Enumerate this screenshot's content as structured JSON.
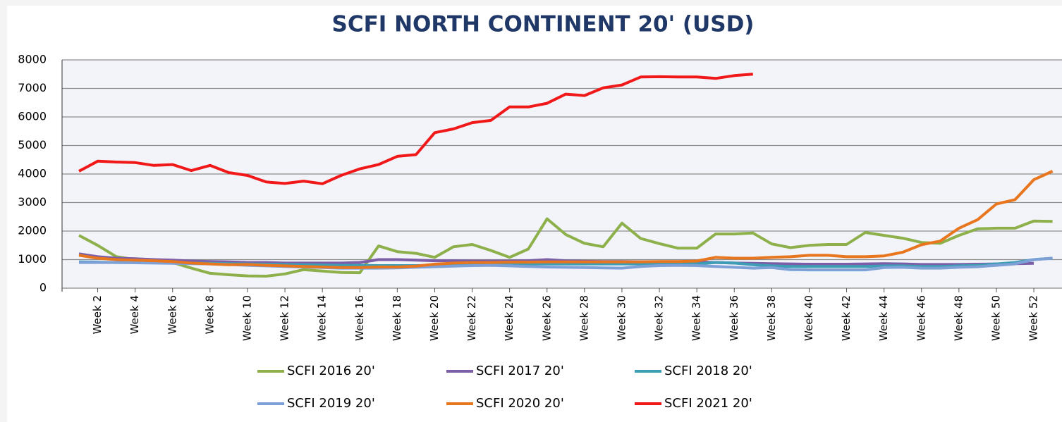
{
  "chart_data": {
    "type": "line",
    "title": "SCFI NORTH CONTINENT 20' (USD)",
    "categories": [
      null,
      "Week 2",
      null,
      "Week 4",
      null,
      "Week 6",
      null,
      "Week 8",
      null,
      "Week 10",
      null,
      "Week 12",
      null,
      "Week 14",
      null,
      "Week 16",
      null,
      "Week 18",
      null,
      "Week 20",
      null,
      "Week 22",
      null,
      "Week 24",
      null,
      "Week 26",
      null,
      "Week 28",
      null,
      "Week 30",
      null,
      "Week 32",
      null,
      "Week 34",
      null,
      "Week 36",
      null,
      "Week 38",
      null,
      "Week 40",
      null,
      "Week 42",
      null,
      "Week 44",
      null,
      "Week 46",
      null,
      "Week 48",
      null,
      "Week 50",
      null,
      "Week 52",
      null
    ],
    "series": [
      {
        "name": "SCFI 2016 20'",
        "color": "#8db04a",
        "values": [
          1850,
          1500,
          1100,
          1000,
          950,
          900,
          700,
          520,
          470,
          430,
          420,
          500,
          650,
          600,
          550,
          540,
          1480,
          1280,
          1220,
          1080,
          1450,
          1530,
          1320,
          1080,
          1370,
          2430,
          1880,
          1570,
          1450,
          2280,
          1740,
          1560,
          1400,
          1400,
          1900,
          1900,
          1930,
          1550,
          1420,
          1500,
          1530,
          1530,
          1950,
          1850,
          1750,
          1600,
          1570,
          1850,
          2080,
          2100,
          2100,
          2350,
          2340
        ]
      },
      {
        "name": "SCFI 2017 20'",
        "color": "#7b5ea7",
        "values": [
          1200,
          1100,
          1050,
          1030,
          1000,
          980,
          950,
          930,
          920,
          900,
          900,
          880,
          880,
          880,
          880,
          900,
          1000,
          1000,
          980,
          960,
          960,
          950,
          950,
          950,
          960,
          1000,
          960,
          940,
          930,
          930,
          920,
          920,
          920,
          920,
          900,
          880,
          870,
          860,
          850,
          840,
          840,
          840,
          850,
          860,
          850,
          830,
          830,
          830,
          840,
          850,
          860,
          870,
          null
        ]
      },
      {
        "name": "SCFI 2018 20'",
        "color": "#3d9db5",
        "values": [
          920,
          910,
          900,
          900,
          900,
          890,
          880,
          870,
          860,
          850,
          840,
          830,
          820,
          810,
          800,
          800,
          790,
          790,
          790,
          800,
          810,
          820,
          830,
          840,
          850,
          850,
          850,
          850,
          850,
          850,
          850,
          850,
          850,
          850,
          900,
          880,
          820,
          780,
          760,
          760,
          760,
          760,
          760,
          780,
          780,
          760,
          760,
          780,
          800,
          850,
          900,
          1000,
          1050
        ]
      },
      {
        "name": "SCFI 2019 20'",
        "color": "#7da0d6",
        "values": [
          900,
          900,
          900,
          890,
          880,
          870,
          860,
          850,
          830,
          800,
          780,
          760,
          740,
          720,
          700,
          700,
          700,
          710,
          730,
          750,
          770,
          790,
          800,
          780,
          760,
          740,
          730,
          720,
          710,
          700,
          760,
          790,
          800,
          790,
          760,
          730,
          700,
          720,
          650,
          640,
          640,
          640,
          640,
          720,
          730,
          700,
          700,
          730,
          750,
          800,
          850,
          1000,
          1050
        ]
      },
      {
        "name": "SCFI 2020 20'",
        "color": "#e8761e",
        "values": [
          1150,
          1050,
          1000,
          980,
          960,
          930,
          880,
          850,
          820,
          830,
          800,
          780,
          760,
          740,
          720,
          720,
          740,
          740,
          770,
          840,
          880,
          900,
          900,
          910,
          910,
          920,
          920,
          920,
          920,
          920,
          920,
          930,
          930,
          950,
          1080,
          1050,
          1050,
          1080,
          1100,
          1150,
          1150,
          1100,
          1100,
          1130,
          1260,
          1520,
          1650,
          2100,
          2400,
          2950,
          3100,
          3800,
          4100
        ]
      },
      {
        "name": "SCFI 2021 20'",
        "color": "#f01818",
        "values": [
          4100,
          4450,
          4420,
          4400,
          4300,
          4330,
          4120,
          4300,
          4050,
          3950,
          3720,
          3670,
          3750,
          3660,
          3950,
          4180,
          4330,
          4620,
          4680,
          5450,
          5580,
          5800,
          5880,
          6350,
          6350,
          6480,
          6800,
          6750,
          7020,
          7120,
          7400,
          7410,
          7400,
          7400,
          7350,
          7450,
          7500,
          null,
          null,
          null,
          null,
          null,
          null,
          null,
          null,
          null,
          null,
          null,
          null,
          null,
          null,
          null,
          null
        ]
      }
    ],
    "ylim": [
      0,
      8000
    ],
    "yticks": [
      0,
      1000,
      2000,
      3000,
      4000,
      5000,
      6000,
      7000,
      8000
    ],
    "grid": true
  }
}
